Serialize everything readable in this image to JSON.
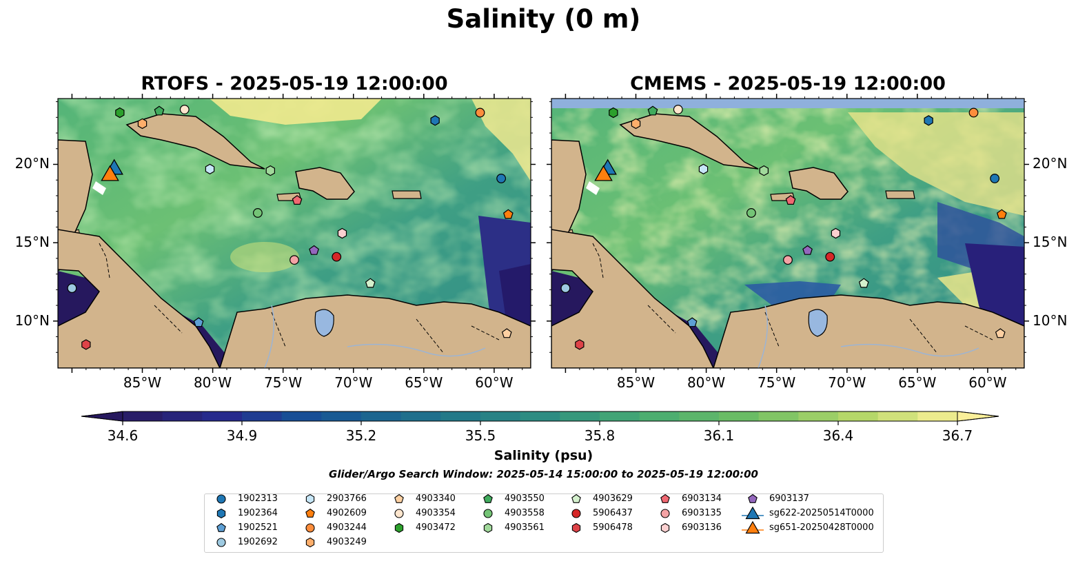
{
  "figure": {
    "title": "Salinity (0 m)",
    "search_window": "Glider/Argo Search Window: 2025-05-14 15:00:00 to 2025-05-19 12:00:00"
  },
  "panels": [
    {
      "title": "RTOFS - 2025-05-19 12:00:00",
      "name": "rtofs"
    },
    {
      "title": "CMEMS - 2025-05-19 12:00:00",
      "name": "cmems"
    }
  ],
  "axes": {
    "lon_labels": [
      "85°W",
      "80°W",
      "75°W",
      "70°W",
      "65°W",
      "60°W"
    ],
    "lat_labels": [
      "20°N",
      "15°N",
      "10°N"
    ]
  },
  "colorbar": {
    "label": "Salinity (psu)",
    "ticks": [
      "34.6",
      "34.9",
      "35.2",
      "35.5",
      "35.8",
      "36.1",
      "36.4",
      "36.7"
    ],
    "min": 34.6,
    "max": 36.7
  },
  "legend": [
    {
      "label": "1902313",
      "marker": "circle",
      "color": "#1f77b4"
    },
    {
      "label": "1902364",
      "marker": "hexagon",
      "color": "#1f77b4"
    },
    {
      "label": "1902521",
      "marker": "pentagon",
      "color": "#5d9fd4"
    },
    {
      "label": "1902692",
      "marker": "circle",
      "color": "#9ecae1"
    },
    {
      "label": "2903766",
      "marker": "hexagon",
      "color": "#c6e6f7"
    },
    {
      "label": "4902609",
      "marker": "pentagon",
      "color": "#ff7f0e"
    },
    {
      "label": "4903244",
      "marker": "circle",
      "color": "#fd8d3c"
    },
    {
      "label": "4903249",
      "marker": "hexagon",
      "color": "#fdae6b"
    },
    {
      "label": "4903340",
      "marker": "pentagon",
      "color": "#fdd0a2"
    },
    {
      "label": "4903354",
      "marker": "circle",
      "color": "#fee6ce"
    },
    {
      "label": "4903472",
      "marker": "hexagon",
      "color": "#2ca02c"
    },
    {
      "label": "4903550",
      "marker": "pentagon",
      "color": "#41ab5d"
    },
    {
      "label": "4903558",
      "marker": "circle",
      "color": "#74c476"
    },
    {
      "label": "4903561",
      "marker": "hexagon",
      "color": "#a1d99b"
    },
    {
      "label": "4903629",
      "marker": "pentagon",
      "color": "#d4f0cd"
    },
    {
      "label": "5906437",
      "marker": "circle",
      "color": "#d62728"
    },
    {
      "label": "5906478",
      "marker": "hexagon",
      "color": "#de4348"
    },
    {
      "label": "6903134",
      "marker": "pentagon",
      "color": "#f06872"
    },
    {
      "label": "6903135",
      "marker": "circle",
      "color": "#f4a3a5"
    },
    {
      "label": "6903136",
      "marker": "hexagon",
      "color": "#fbd0d0"
    },
    {
      "label": "6903137",
      "marker": "pentagon",
      "color": "#9467bd"
    },
    {
      "label": "sg622-20250514T0000",
      "marker": "triangle",
      "color": "#1f77b4"
    },
    {
      "label": "sg651-20250428T0000",
      "marker": "triangle",
      "color": "#ff7f0e"
    }
  ],
  "floats": [
    {
      "id": "1902313",
      "lon": -59.5,
      "lat": 19.1
    },
    {
      "id": "1902364",
      "lon": -64.2,
      "lat": 22.8
    },
    {
      "id": "1902521",
      "lon": -81.0,
      "lat": 9.9
    },
    {
      "id": "1902692",
      "lon": -90.0,
      "lat": 12.1
    },
    {
      "id": "2903766",
      "lon": -80.2,
      "lat": 19.7
    },
    {
      "id": "4902609",
      "lon": -59.0,
      "lat": 16.8
    },
    {
      "id": "4903244",
      "lon": -61.0,
      "lat": 23.3
    },
    {
      "id": "4903249",
      "lon": -85.0,
      "lat": 22.6
    },
    {
      "id": "4903340",
      "lon": -59.1,
      "lat": 9.2
    },
    {
      "id": "4903354",
      "lon": -82.0,
      "lat": 23.5
    },
    {
      "id": "4903472",
      "lon": -86.6,
      "lat": 23.3
    },
    {
      "id": "4903550",
      "lon": -83.8,
      "lat": 23.4
    },
    {
      "id": "4903558",
      "lon": -76.8,
      "lat": 16.9
    },
    {
      "id": "4903561",
      "lon": -75.9,
      "lat": 19.6
    },
    {
      "id": "4903629",
      "lon": -68.8,
      "lat": 12.4
    },
    {
      "id": "5906437",
      "lon": -71.2,
      "lat": 14.1
    },
    {
      "id": "5906478",
      "lon": -89.0,
      "lat": 8.5
    },
    {
      "id": "6903134",
      "lon": -74.0,
      "lat": 17.7
    },
    {
      "id": "6903135",
      "lon": -74.2,
      "lat": 13.9
    },
    {
      "id": "6903136",
      "lon": -70.8,
      "lat": 15.6
    },
    {
      "id": "6903137",
      "lon": -72.8,
      "lat": 14.5
    }
  ],
  "gliders": [
    {
      "id": "sg622-20250514T0000",
      "lon": -87.0,
      "lat": 19.5
    },
    {
      "id": "sg651-20250428T0000",
      "lon": -87.3,
      "lat": 19.1
    }
  ],
  "colors": {
    "land": "#d2b48c",
    "water_inland": "#98b8e0",
    "cmems_nodata": "#8fb0dc"
  }
}
